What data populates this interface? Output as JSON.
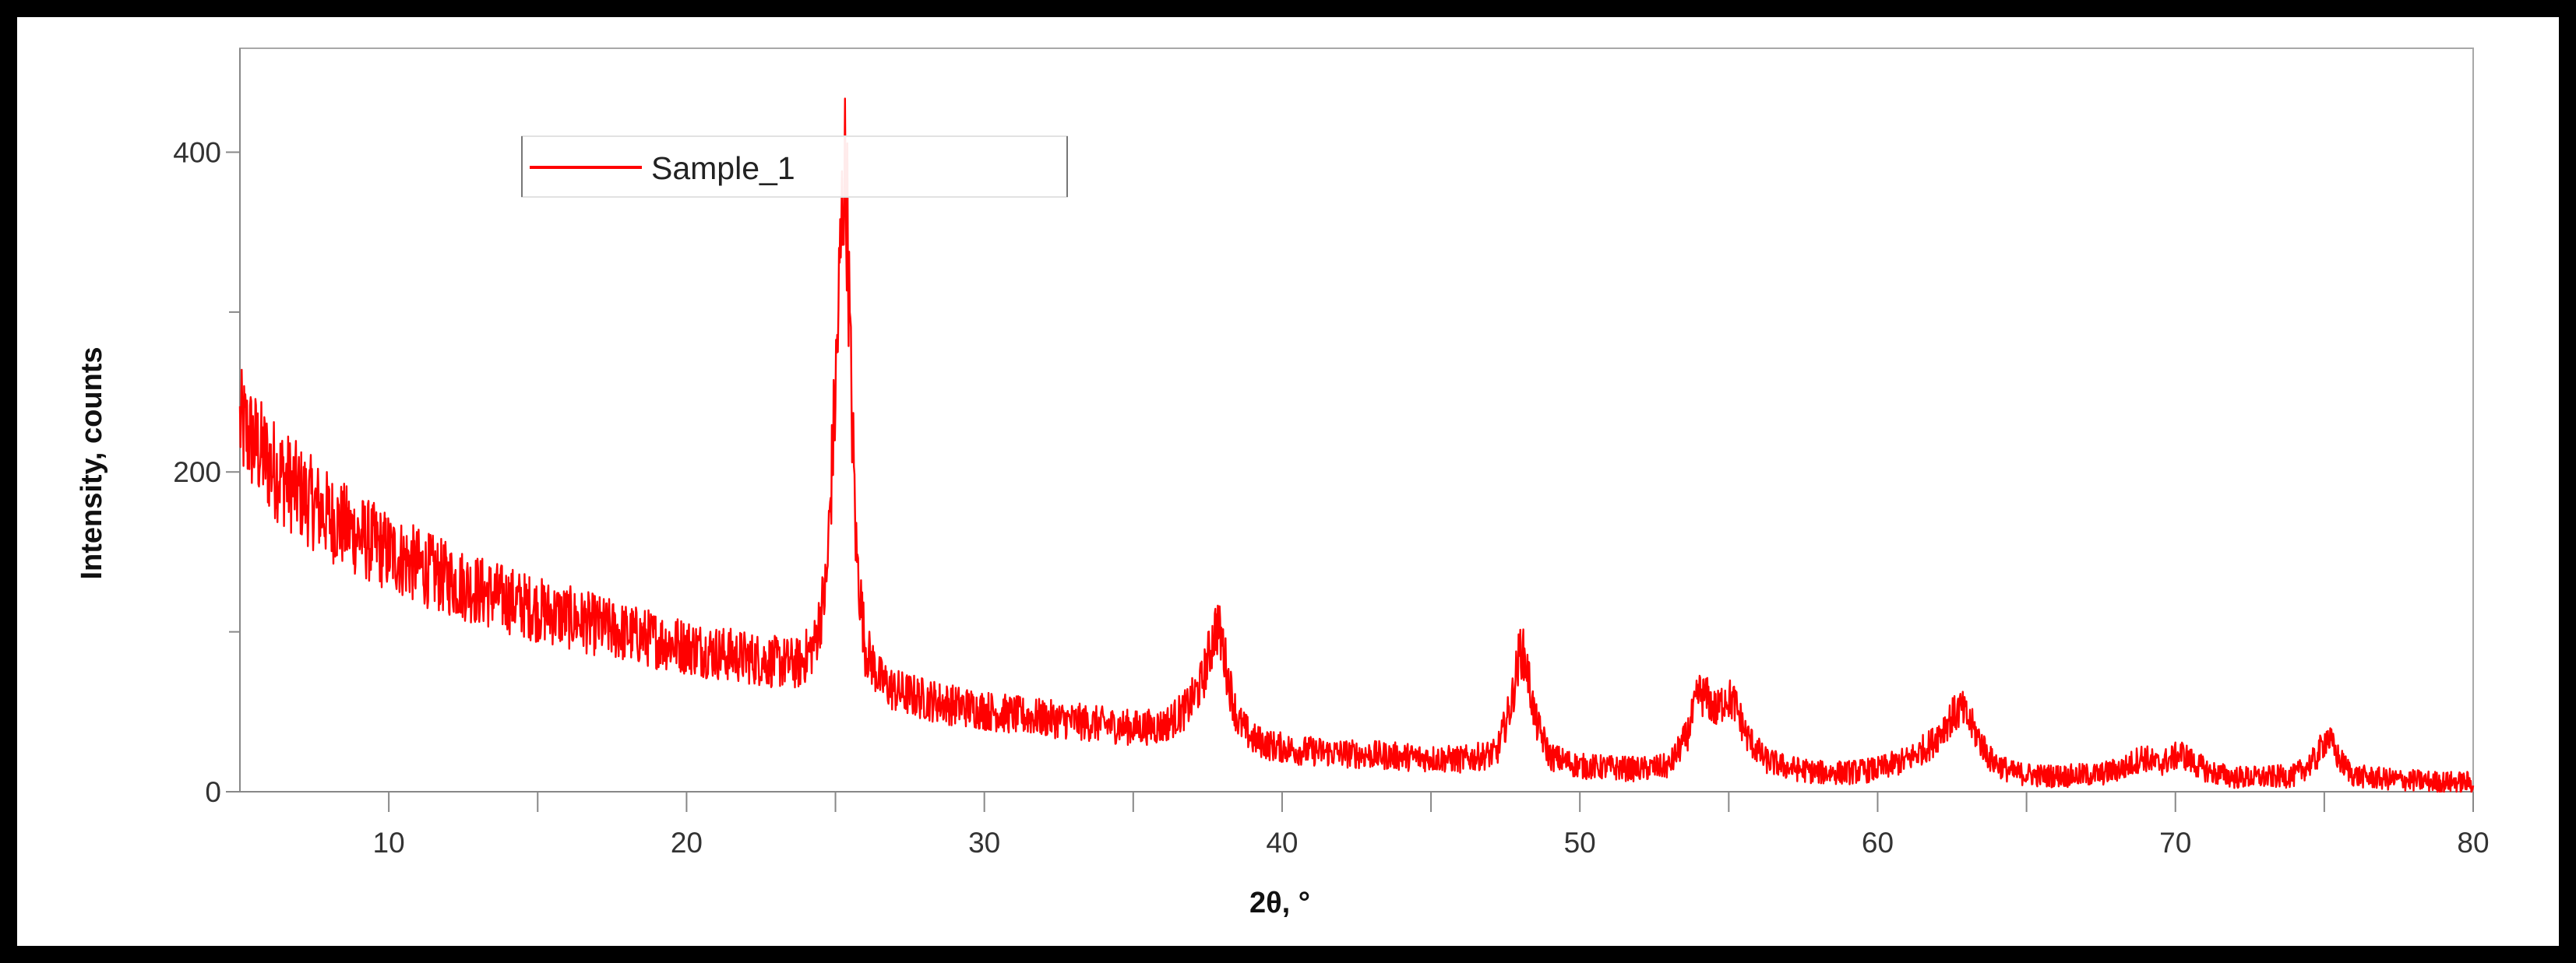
{
  "chart_data": {
    "type": "line",
    "xlabel": "2θ, °",
    "ylabel": "Intensity, counts",
    "xlim": [
      5,
      80
    ],
    "ylim": [
      0,
      465
    ],
    "x_ticks": [
      10,
      20,
      30,
      40,
      50,
      60,
      70,
      80
    ],
    "x_minor_ticks": [
      15,
      25,
      35,
      45,
      55,
      65,
      75
    ],
    "y_ticks": [
      0,
      200,
      400
    ],
    "y_minor_ticks": [
      100,
      300
    ],
    "grid": false,
    "legend_position": "top-left",
    "series": [
      {
        "name": "Sample_1",
        "color": "#ff0000",
        "x": [
          5.0,
          6.0,
          7.0,
          8.0,
          9.0,
          10.0,
          11.0,
          12.0,
          13.0,
          14.0,
          15.0,
          16.0,
          17.0,
          18.0,
          19.0,
          20.0,
          21.0,
          22.0,
          23.0,
          23.8,
          24.3,
          24.7,
          25.0,
          25.2,
          25.3,
          25.4,
          25.5,
          25.7,
          26.0,
          26.5,
          27.0,
          28.0,
          29.0,
          30.0,
          31.0,
          32.0,
          33.0,
          34.0,
          35.0,
          36.0,
          36.8,
          37.3,
          37.6,
          37.8,
          38.0,
          38.2,
          38.5,
          39.0,
          39.6,
          40.5,
          42.0,
          44.0,
          46.0,
          47.2,
          47.7,
          48.0,
          48.2,
          48.5,
          49.0,
          50.0,
          51.0,
          52.0,
          53.0,
          53.6,
          54.0,
          54.3,
          54.6,
          54.9,
          55.2,
          55.6,
          56.2,
          57.0,
          58.0,
          59.0,
          60.0,
          61.0,
          61.8,
          62.4,
          62.8,
          63.2,
          63.8,
          64.5,
          65.5,
          66.5,
          67.5,
          68.3,
          68.9,
          69.4,
          69.8,
          70.2,
          70.6,
          71.2,
          72.0,
          73.0,
          74.0,
          74.7,
          75.1,
          75.5,
          76.0,
          77.0,
          78.0,
          79.0,
          80.0
        ],
        "y": [
          230,
          205,
          187,
          172,
          160,
          150,
          141,
          133,
          126,
          120,
          114,
          109,
          104,
          99,
          95,
          91,
          87,
          84,
          81,
          80,
          92,
          130,
          250,
          350,
          395,
          360,
          270,
          150,
          90,
          70,
          63,
          58,
          54,
          51,
          48,
          46,
          44,
          42,
          40,
          41,
          52,
          68,
          90,
          105,
          92,
          70,
          45,
          33,
          29,
          26,
          24,
          22,
          20,
          24,
          55,
          90,
          80,
          45,
          22,
          16,
          15,
          14,
          16,
          35,
          62,
          58,
          50,
          60,
          55,
          35,
          20,
          15,
          12,
          12,
          14,
          20,
          30,
          45,
          52,
          40,
          20,
          12,
          10,
          10,
          11,
          15,
          22,
          17,
          20,
          24,
          18,
          12,
          9,
          9,
          10,
          20,
          35,
          20,
          10,
          8,
          7,
          6,
          6
        ]
      }
    ]
  }
}
